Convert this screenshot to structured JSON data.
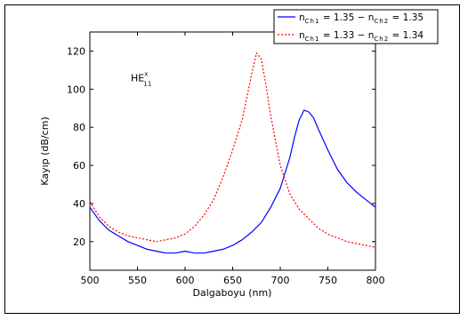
{
  "chart_data": {
    "type": "line",
    "xlabel": "Dalgaboyu (nm)",
    "ylabel": "Kayıp (dB/cm)",
    "xlim": [
      500,
      800
    ],
    "ylim": [
      5,
      130
    ],
    "x_ticks": [
      500,
      550,
      600,
      650,
      700,
      750,
      800
    ],
    "y_ticks": [
      20,
      40,
      60,
      80,
      100,
      120
    ],
    "grid": false,
    "legend_position": "top-right",
    "annotation": {
      "main": "HE",
      "superscript": "x",
      "subscript": "11",
      "x": 543,
      "y": 104
    },
    "series": [
      {
        "name_parts": {
          "prefix": "n",
          "sub1": "Ch1",
          "mid": " = 1.35 − n",
          "sub2": "Ch2",
          "suffix": " = 1.35"
        },
        "color": "#0000ff",
        "dash": "solid",
        "x": [
          500,
          510,
          520,
          530,
          540,
          550,
          560,
          570,
          580,
          590,
          600,
          610,
          620,
          630,
          640,
          650,
          660,
          670,
          680,
          690,
          700,
          710,
          715,
          720,
          725,
          730,
          735,
          740,
          750,
          760,
          770,
          780,
          790,
          800
        ],
        "y": [
          38,
          31,
          26,
          23,
          20,
          18,
          16,
          15,
          14,
          14,
          15,
          14,
          14,
          15,
          16,
          18,
          21,
          25,
          30,
          38,
          48,
          64,
          75,
          84,
          89,
          88,
          85,
          79,
          68,
          58,
          51,
          46,
          42,
          38
        ]
      },
      {
        "name_parts": {
          "prefix": "n",
          "sub1": "Ch1",
          "mid": " = 1.33 − n",
          "sub2": "Ch2",
          "suffix": " = 1.34"
        },
        "color": "#ff0000",
        "dash": "dotted",
        "x": [
          500,
          510,
          520,
          530,
          540,
          550,
          560,
          570,
          580,
          590,
          600,
          610,
          620,
          630,
          640,
          650,
          660,
          665,
          670,
          675,
          680,
          685,
          690,
          700,
          710,
          720,
          730,
          740,
          750,
          760,
          770,
          780,
          790,
          800
        ],
        "y": [
          41,
          33,
          28,
          25,
          23,
          22,
          21,
          20,
          21,
          22,
          24,
          28,
          34,
          42,
          54,
          68,
          84,
          96,
          108,
          119,
          116,
          102,
          86,
          60,
          45,
          37,
          32,
          27,
          24,
          22,
          20,
          19,
          18,
          17
        ]
      }
    ]
  }
}
